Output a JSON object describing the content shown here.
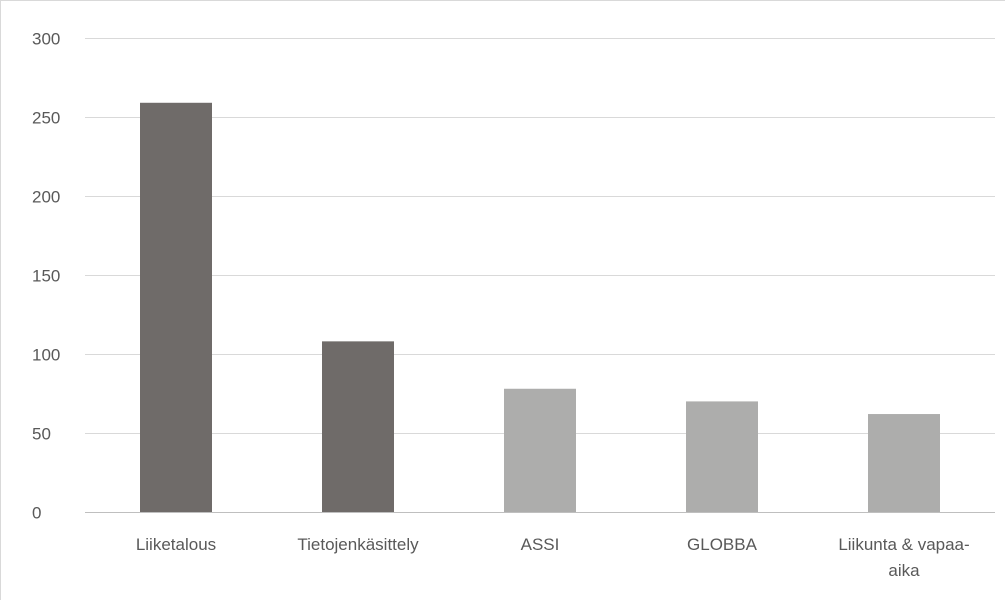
{
  "chart_data": {
    "type": "bar",
    "categories": [
      "Liiketalous",
      "Tietojenkäsittely",
      "ASSI",
      "GLOBBA",
      "Liikunta & vapaa-aika"
    ],
    "category_label_lines": [
      [
        "Liiketalous"
      ],
      [
        "Tietojenkäsittely"
      ],
      [
        "ASSI"
      ],
      [
        "GLOBBA"
      ],
      [
        "Liikunta & vapaa-",
        "aika"
      ]
    ],
    "values": [
      259,
      108,
      78,
      70,
      62
    ],
    "bar_colors": [
      "#6f6b69",
      "#6f6b69",
      "#adadac",
      "#adadac",
      "#adadac"
    ],
    "yticks": [
      0,
      50,
      100,
      150,
      200,
      250,
      300
    ],
    "ylim": [
      0,
      300
    ],
    "title": "",
    "xlabel": "",
    "ylabel": "",
    "grid": true,
    "legend": "none"
  }
}
